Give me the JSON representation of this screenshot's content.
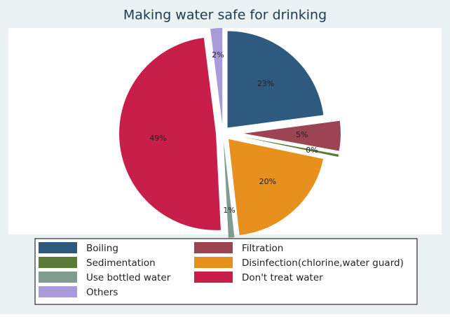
{
  "chart_data": {
    "type": "pie",
    "title": "Making water safe for drinking",
    "categories": [
      "Boiling",
      "Filtration",
      "Sedimentation",
      "Disinfection(chlorine,water guard)",
      "Use bottled water",
      "Don't treat water",
      "Others"
    ],
    "values": [
      23,
      5,
      0.4,
      20,
      1,
      49,
      2
    ],
    "value_labels": [
      "23%",
      "5%",
      "0%",
      "20%",
      "1%",
      "49%",
      "2%"
    ],
    "colors": [
      "#2e5a7f",
      "#9c4451",
      "#5a7b35",
      "#e8901d",
      "#809b8f",
      "#c81e4a",
      "#a99bd9"
    ]
  }
}
